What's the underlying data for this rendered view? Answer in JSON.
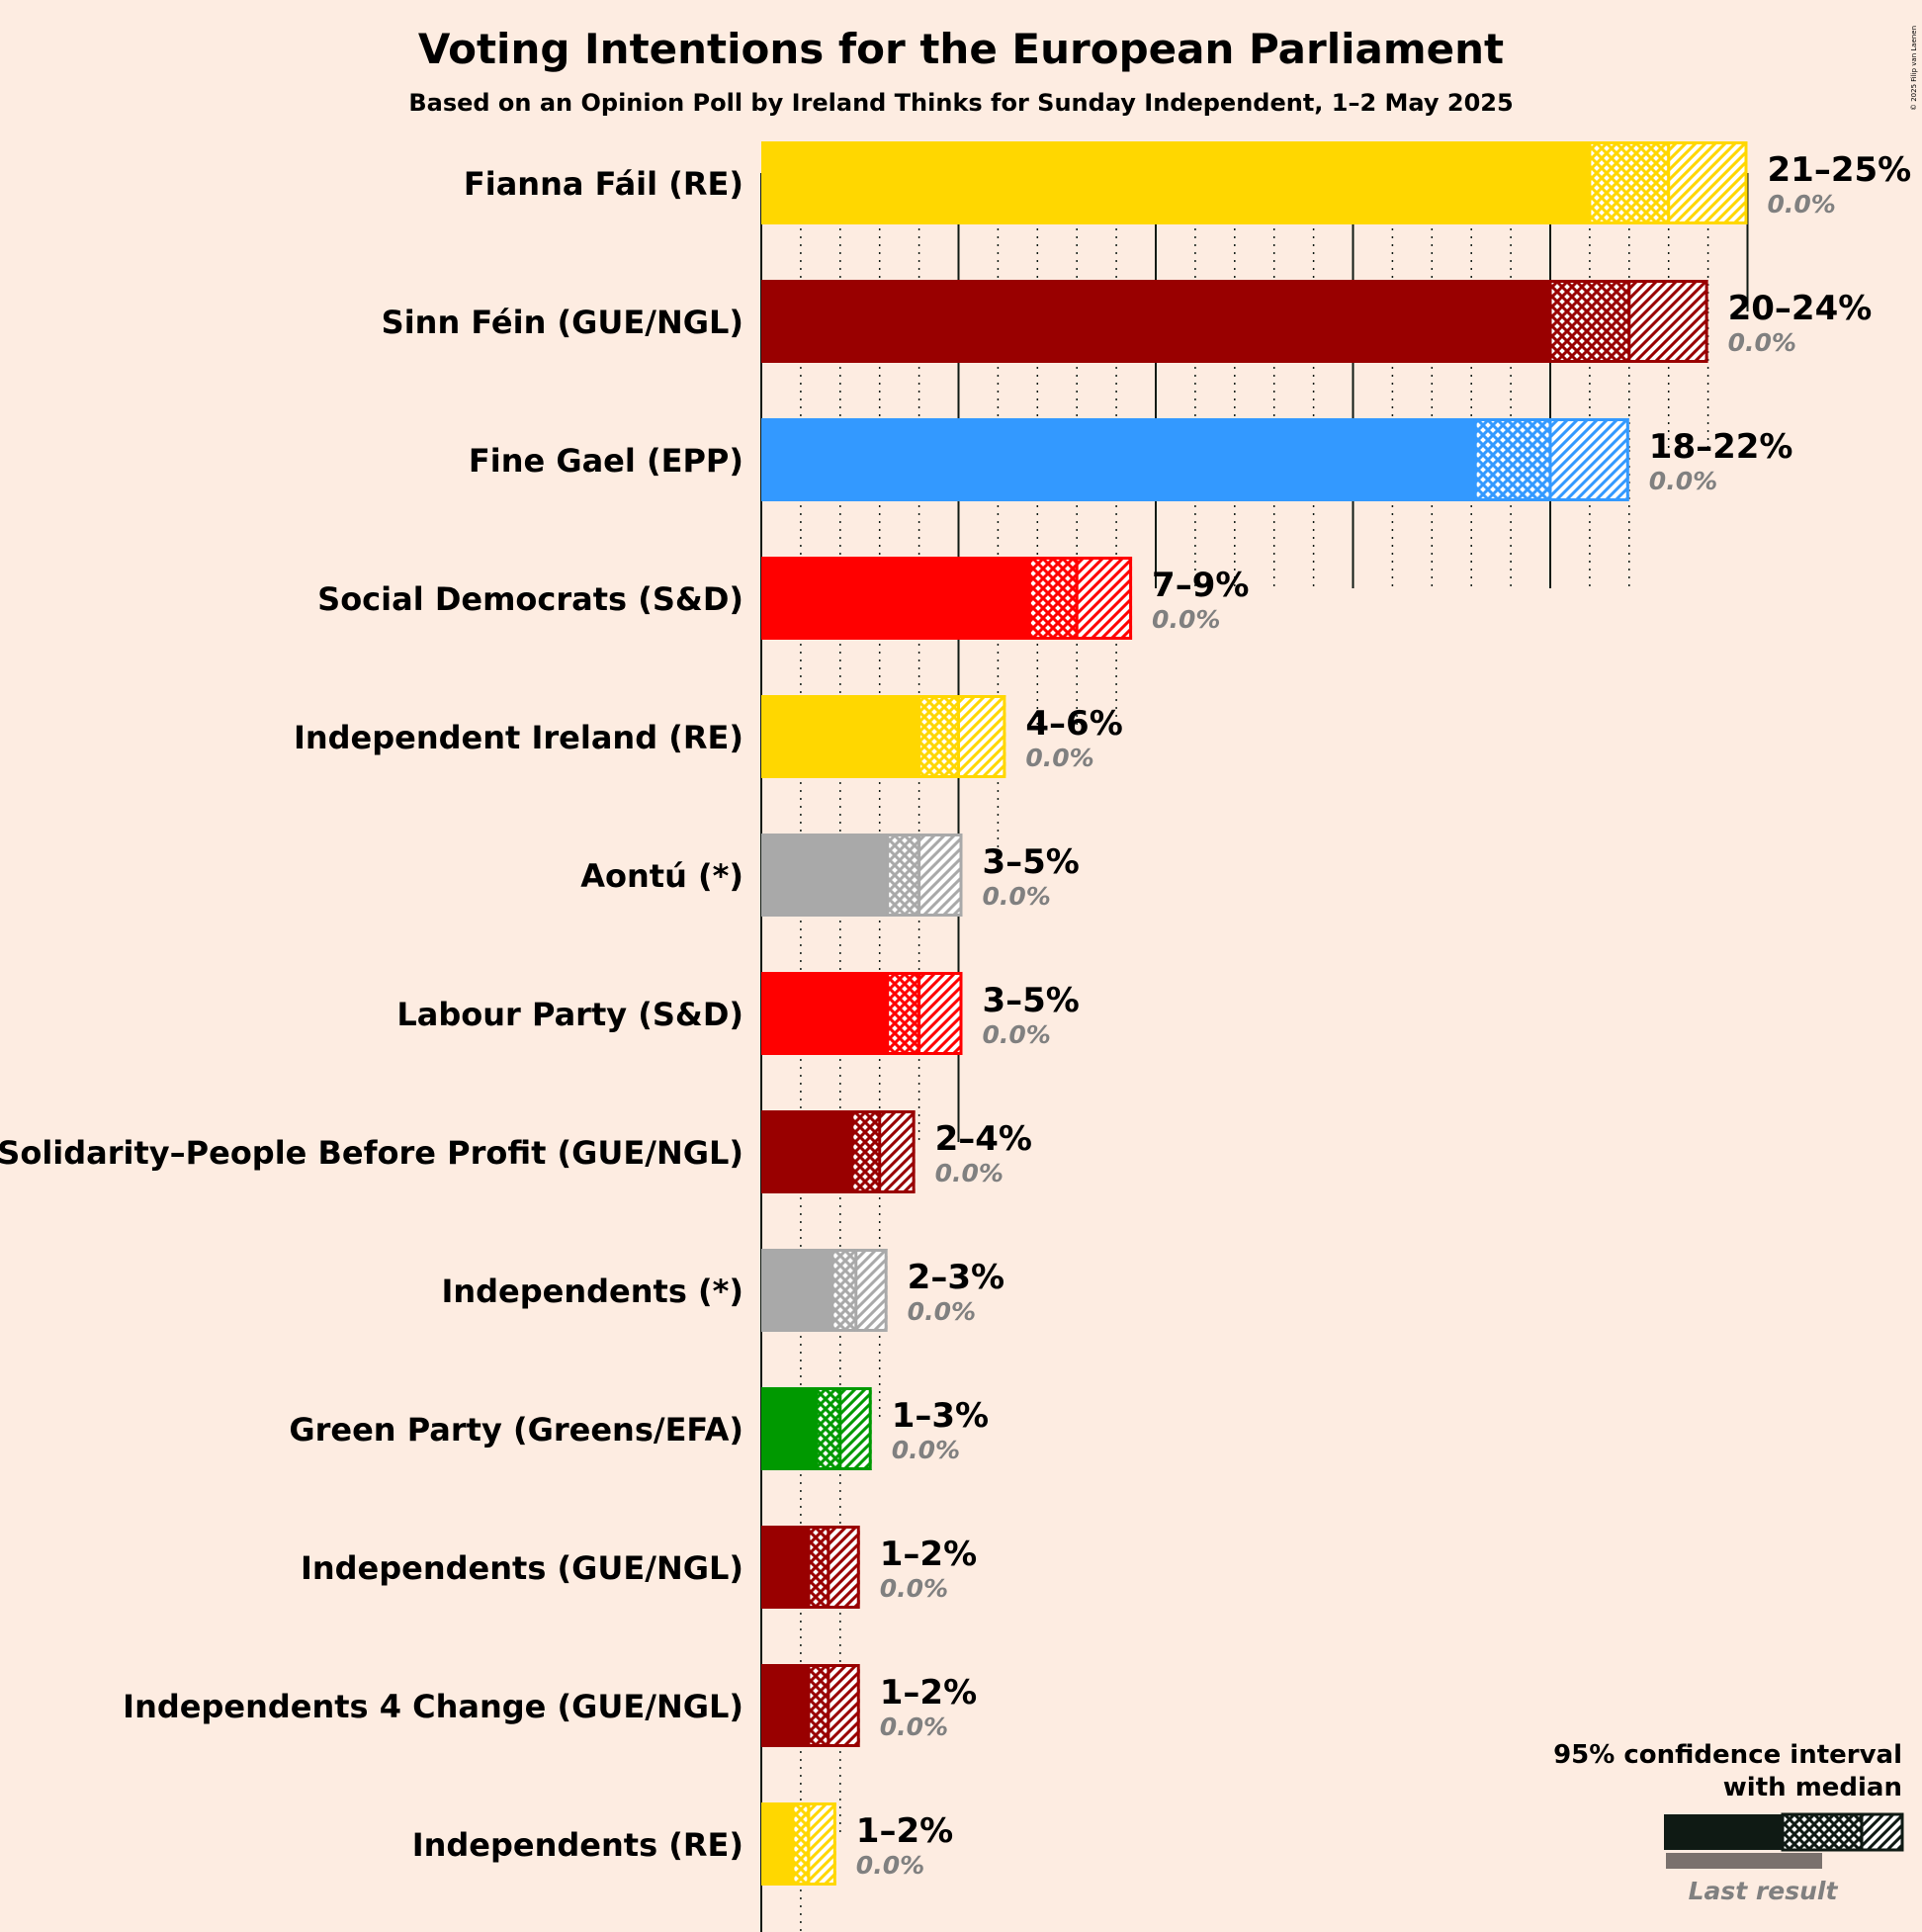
{
  "title": "Voting Intentions for the European Parliament",
  "subtitle": "Based on an Opinion Poll by Ireland Thinks for Sunday Independent, 1–2 May 2025",
  "copyright": "© 2025 Filip van Laenen",
  "legend": {
    "line1": "95% confidence interval",
    "line2": "with median",
    "last_result": "Last result"
  },
  "chart_data": {
    "type": "bar",
    "orientation": "horizontal",
    "title": "Voting Intentions for the European Parliament",
    "subtitle": "Based on an Opinion Poll by Ireland Thinks for Sunday Independent, 1–2 May 2025",
    "unit": "%",
    "xlim": [
      0,
      25
    ],
    "major_gridlines_every": 5,
    "minor_gridlines_every": 1,
    "series": [
      {
        "party": "Fianna Fáil (RE)",
        "color": "#ffd700",
        "low": 21.0,
        "median": 23.0,
        "high": 25.0,
        "range_label": "21–25%",
        "last_result": "0.0%"
      },
      {
        "party": "Sinn Féin (GUE/NGL)",
        "color": "#990000",
        "low": 20.0,
        "median": 22.0,
        "high": 24.0,
        "range_label": "20–24%",
        "last_result": "0.0%"
      },
      {
        "party": "Fine Gael (EPP)",
        "color": "#3399ff",
        "low": 18.1,
        "median": 20.0,
        "high": 22.0,
        "range_label": "18–22%",
        "last_result": "0.0%"
      },
      {
        "party": "Social Democrats (S&D)",
        "color": "#ff0000",
        "low": 6.8,
        "median": 8.0,
        "high": 9.4,
        "range_label": "7–9%",
        "last_result": "0.0%"
      },
      {
        "party": "Independent Ireland (RE)",
        "color": "#ffd700",
        "low": 4.0,
        "median": 5.0,
        "high": 6.2,
        "range_label": "4–6%",
        "last_result": "0.0%"
      },
      {
        "party": "Aontú (*)",
        "color": "#a9a9a9",
        "low": 3.2,
        "median": 4.0,
        "high": 5.1,
        "range_label": "3–5%",
        "last_result": "0.0%"
      },
      {
        "party": "Labour Party (S&D)",
        "color": "#ff0000",
        "low": 3.2,
        "median": 4.0,
        "high": 5.1,
        "range_label": "3–5%",
        "last_result": "0.0%"
      },
      {
        "party": "Solidarity–People Before Profit (GUE/NGL)",
        "color": "#990000",
        "low": 2.3,
        "median": 3.0,
        "high": 3.9,
        "range_label": "2–4%",
        "last_result": "0.0%"
      },
      {
        "party": "Independents (*)",
        "color": "#a9a9a9",
        "low": 1.8,
        "median": 2.4,
        "high": 3.2,
        "range_label": "2–3%",
        "last_result": "0.0%"
      },
      {
        "party": "Green Party (Greens/EFA)",
        "color": "#009900",
        "low": 1.4,
        "median": 2.0,
        "high": 2.8,
        "range_label": "1–3%",
        "last_result": "0.0%"
      },
      {
        "party": "Independents (GUE/NGL)",
        "color": "#990000",
        "low": 1.2,
        "median": 1.7,
        "high": 2.5,
        "range_label": "1–2%",
        "last_result": "0.0%"
      },
      {
        "party": "Independents 4 Change (GUE/NGL)",
        "color": "#990000",
        "low": 1.2,
        "median": 1.7,
        "high": 2.5,
        "range_label": "1–2%",
        "last_result": "0.0%"
      },
      {
        "party": "Independents (RE)",
        "color": "#ffd700",
        "low": 0.8,
        "median": 1.2,
        "high": 1.9,
        "range_label": "1–2%",
        "last_result": "0.0%"
      }
    ]
  }
}
